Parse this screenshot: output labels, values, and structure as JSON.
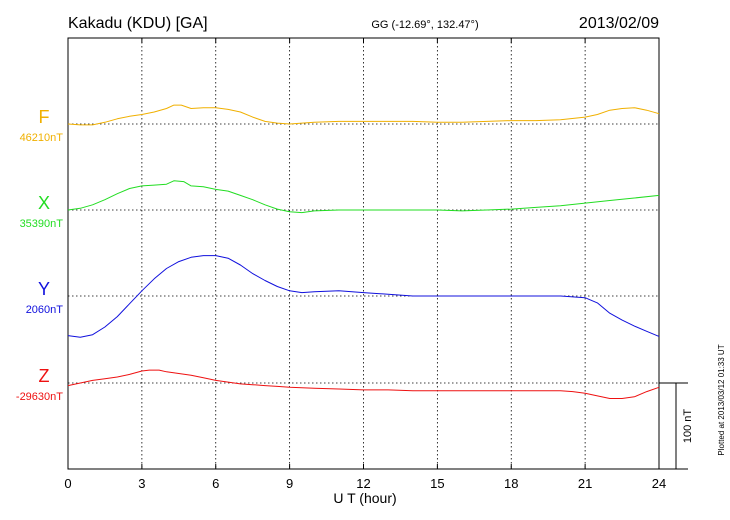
{
  "chart_data": {
    "type": "line",
    "title_left": "Kakadu (KDU)  [GA]",
    "title_center": "GG (-12.69°, 132.47°)",
    "title_right": "2013/02/09",
    "xlabel": "U T (hour)",
    "xlim": [
      0,
      24
    ],
    "x_ticks": [
      "0",
      "3",
      "6",
      "9",
      "12",
      "15",
      "18",
      "21",
      "24"
    ],
    "grid": true,
    "scale_bar_label": "100 nT",
    "scale_bar_value_nT": 100,
    "footer": "Plotted at 2013/03/12 01:33 UT",
    "series": [
      {
        "name": "F",
        "baseline_label": "46210nT",
        "baseline_nT": 46210,
        "color": "#f0b000",
        "x": [
          0,
          0.5,
          1,
          1.5,
          2,
          2.5,
          3,
          3.5,
          4,
          4.3,
          4.6,
          5,
          5.5,
          6,
          6.5,
          7,
          7.5,
          8,
          8.5,
          9,
          10,
          11,
          12,
          13,
          14,
          15,
          16,
          17,
          18,
          19,
          20,
          21,
          21.5,
          22,
          22.5,
          23,
          23.5,
          24
        ],
        "values": [
          0,
          -1,
          -1,
          2,
          6,
          9,
          11,
          14,
          18,
          22,
          22,
          18,
          19,
          19,
          17,
          14,
          8,
          3,
          1,
          0,
          2,
          3,
          3,
          3,
          3,
          2,
          2,
          3,
          4,
          4,
          5,
          8,
          11,
          16,
          18,
          19,
          16,
          12
        ]
      },
      {
        "name": "X",
        "baseline_label": "35390nT",
        "baseline_nT": 35390,
        "color": "#22dd22",
        "x": [
          0,
          0.5,
          1,
          1.5,
          2,
          2.5,
          3,
          3.5,
          4,
          4.3,
          4.7,
          5,
          5.5,
          6,
          6.5,
          7,
          7.5,
          8,
          8.5,
          9,
          9.5,
          10,
          11,
          12,
          13,
          14,
          15,
          16,
          17,
          18,
          19,
          20,
          21,
          22,
          23,
          24
        ],
        "values": [
          0,
          2,
          6,
          12,
          19,
          25,
          28,
          29,
          30,
          34,
          33,
          28,
          27,
          24,
          22,
          17,
          12,
          6,
          1,
          -2,
          -3,
          -1,
          0,
          0,
          0,
          0,
          0,
          -1,
          0,
          1,
          3,
          5,
          8,
          11,
          14,
          17
        ]
      },
      {
        "name": "Y",
        "baseline_label": "2060nT",
        "baseline_nT": 2060,
        "color": "#1010dd",
        "x": [
          0,
          0.5,
          1,
          1.5,
          2,
          2.5,
          3,
          3.5,
          4,
          4.5,
          5,
          5.5,
          6,
          6.5,
          7,
          7.5,
          8,
          8.5,
          9,
          9.5,
          10,
          11,
          12,
          13,
          14,
          15,
          16,
          17,
          18,
          19,
          20,
          20.5,
          21,
          21.5,
          22,
          22.5,
          23,
          23.5,
          24
        ],
        "values": [
          -46,
          -48,
          -45,
          -36,
          -24,
          -9,
          6,
          20,
          32,
          40,
          45,
          47,
          47,
          44,
          36,
          26,
          18,
          11,
          6,
          4,
          5,
          6,
          4,
          2,
          0,
          0,
          0,
          0,
          0,
          0,
          0,
          -1,
          -2,
          -8,
          -20,
          -28,
          -35,
          -41,
          -47
        ]
      },
      {
        "name": "Z",
        "baseline_label": "-29630nT",
        "baseline_nT": -29630,
        "color": "#ee1111",
        "x": [
          0,
          0.5,
          1,
          1.5,
          2,
          2.5,
          3,
          3.3,
          3.7,
          4,
          4.5,
          5,
          5.5,
          6,
          6.5,
          7,
          7.5,
          8,
          8.5,
          9,
          10,
          11,
          12,
          13,
          14,
          15,
          16,
          17,
          18,
          19,
          20,
          20.5,
          21,
          21.5,
          22,
          22.5,
          23,
          23.5,
          24
        ],
        "values": [
          -3,
          0,
          3,
          5,
          7,
          10,
          14,
          15,
          15,
          13,
          11,
          9,
          6,
          3,
          1,
          -1,
          -2,
          -3,
          -4,
          -5,
          -6,
          -7,
          -8,
          -8,
          -9,
          -9,
          -9,
          -9,
          -9,
          -9,
          -9,
          -10,
          -12,
          -15,
          -18,
          -18,
          -16,
          -10,
          -5
        ]
      }
    ]
  }
}
